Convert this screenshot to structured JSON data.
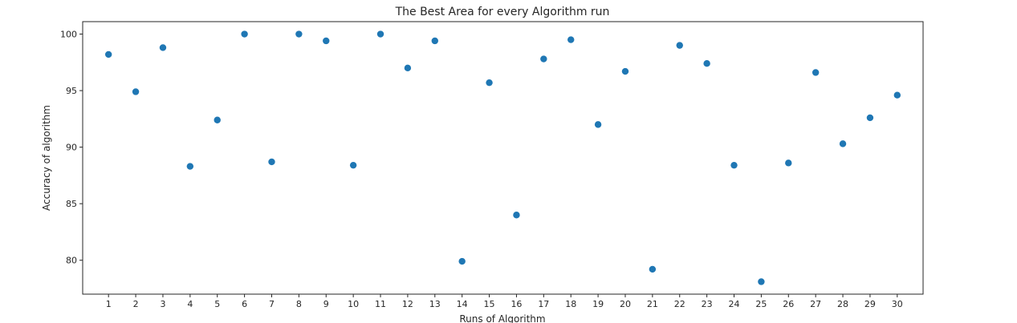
{
  "chart_data": {
    "type": "scatter",
    "title": "The Best Area for every Algorithm run",
    "xlabel": "Runs of Algorithm",
    "ylabel": "Accuracy of algorithm",
    "xlim": [
      0.05,
      30.95
    ],
    "ylim": [
      77.0,
      101.1
    ],
    "xticks": [
      1,
      2,
      3,
      4,
      5,
      6,
      7,
      8,
      9,
      10,
      11,
      12,
      13,
      14,
      15,
      16,
      17,
      18,
      19,
      20,
      21,
      22,
      23,
      24,
      25,
      26,
      27,
      28,
      29,
      30
    ],
    "yticks": [
      80,
      85,
      90,
      95,
      100
    ],
    "grid": false,
    "marker_color": "#1f77b4",
    "series": [
      {
        "x": [
          1,
          2,
          3,
          4,
          5,
          6,
          7,
          8,
          9,
          10,
          11,
          12,
          13,
          14,
          15,
          16,
          17,
          18,
          19,
          20,
          21,
          22,
          23,
          24,
          25,
          26,
          27,
          28,
          29,
          30
        ],
        "y": [
          98.2,
          94.9,
          98.8,
          88.3,
          92.4,
          100.0,
          88.7,
          100.0,
          99.4,
          88.4,
          100.0,
          97.0,
          99.4,
          79.9,
          95.7,
          84.0,
          97.8,
          99.5,
          92.0,
          96.7,
          79.2,
          99.0,
          97.4,
          88.4,
          78.1,
          88.6,
          96.6,
          90.3,
          92.6,
          94.6
        ]
      }
    ]
  }
}
